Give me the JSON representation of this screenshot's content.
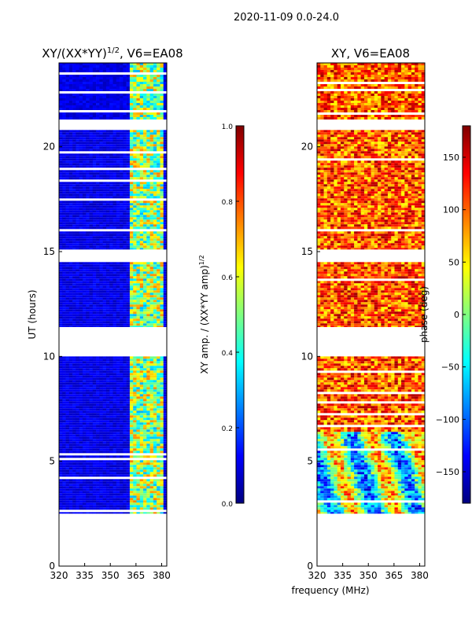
{
  "suptitle": "2020-11-09 0.0-24.0",
  "chart_data": [
    {
      "type": "heatmap",
      "title": "XY/(XX*YY)^1/2, V6=EA08",
      "title_main": "XY/(XX*YY)",
      "title_exp": "1/2",
      "title_suffix": ", V6=EA08",
      "xlabel": "",
      "ylabel": "UT (hours)",
      "xlim": [
        320,
        383
      ],
      "ylim": [
        0,
        24
      ],
      "xticks": [
        "320",
        "335",
        "350",
        "365",
        "380"
      ],
      "yticks": [
        "0",
        "5",
        "10",
        "15",
        "20"
      ],
      "data_blocks_hours": [
        [
          2.5,
          10.0
        ],
        [
          11.4,
          14.5
        ],
        [
          15.1,
          20.8
        ],
        [
          21.3,
          24.0
        ]
      ],
      "bright_band_mhz": [
        362,
        381
      ],
      "colorbar": {
        "label": "XY amp. / (XX*YY amp)^1/2",
        "label_main": "XY amp. / (XX*YY amp)",
        "label_exp": "1/2",
        "range": [
          0.0,
          1.0
        ],
        "ticks": [
          "0.0",
          "0.2",
          "0.4",
          "0.6",
          "0.8",
          "1.0"
        ]
      }
    },
    {
      "type": "heatmap",
      "title": "XY, V6=EA08",
      "xlabel": "frequency (MHz)",
      "ylabel": "",
      "xlim": [
        320,
        383
      ],
      "ylim": [
        0,
        24
      ],
      "xticks": [
        "320",
        "335",
        "350",
        "365",
        "380"
      ],
      "yticks": [
        "0",
        "5",
        "10",
        "15",
        "20"
      ],
      "data_blocks_hours": [
        [
          2.5,
          10.0
        ],
        [
          11.4,
          14.5
        ],
        [
          15.1,
          20.8
        ],
        [
          21.3,
          24.0
        ]
      ],
      "colorbar": {
        "label": "phase (deg)",
        "range": [
          -180,
          180
        ],
        "ticks": [
          "−150",
          "−100",
          "−50",
          "0",
          "50",
          "100",
          "150"
        ]
      }
    }
  ]
}
